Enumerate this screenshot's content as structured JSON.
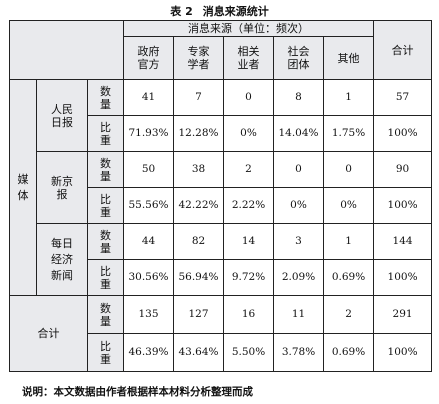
{
  "caption": {
    "label": "表 2",
    "title": "消息来源统计"
  },
  "header": {
    "group_title": "消息来源（单位：频次）",
    "columns": [
      "政府官方",
      "专家学者",
      "相关业者",
      "社会团体",
      "其他"
    ],
    "total": "合计"
  },
  "groups": {
    "media_label": "媒体",
    "total_label": "合计"
  },
  "labels": {
    "count": "数量",
    "ratio": "比重"
  },
  "rows": [
    {
      "source": "人民日报",
      "counts": [
        "41",
        "7",
        "0",
        "8",
        "1",
        "57"
      ],
      "ratios": [
        "71.93%",
        "12.28%",
        "0%",
        "14.04%",
        "1.75%",
        "100%"
      ]
    },
    {
      "source": "新京报",
      "counts": [
        "50",
        "38",
        "2",
        "0",
        "0",
        "90"
      ],
      "ratios": [
        "55.56%",
        "42.22%",
        "2.22%",
        "0%",
        "0%",
        "100%"
      ]
    },
    {
      "source": "每日经济新闻",
      "counts": [
        "44",
        "82",
        "14",
        "3",
        "1",
        "144"
      ],
      "ratios": [
        "30.56%",
        "56.94%",
        "9.72%",
        "2.09%",
        "0.69%",
        "100%"
      ]
    },
    {
      "source": "合计",
      "counts": [
        "135",
        "127",
        "16",
        "11",
        "2",
        "291"
      ],
      "ratios": [
        "46.39%",
        "43.64%",
        "5.50%",
        "3.78%",
        "0.69%",
        "100%"
      ]
    }
  ],
  "note": "说明：本文数据由作者根据样本材料分析整理而成"
}
